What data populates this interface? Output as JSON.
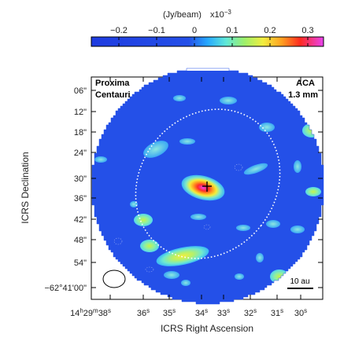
{
  "colorbar": {
    "unit_label": "(Jy/beam)",
    "exponent_label": "x10",
    "exponent_power": "−3",
    "ticks": [
      "−0.2",
      "−0.1",
      "0",
      "0.1",
      "0.2",
      "0.3"
    ]
  },
  "map": {
    "source_line1": "Proxima",
    "source_line2": "Centauri",
    "instrument_line1": "ACA",
    "instrument_line2": "1.3 mm",
    "scalebar_label": "10 au",
    "xlabel": "ICRS Right Ascension",
    "ylabel": "ICRS Declination",
    "y_ticks": [
      "06\"",
      "12\"",
      "18\"",
      "24\"",
      "30\"",
      "36\"",
      "42\"",
      "48\"",
      "54\"",
      "−62°41'00\""
    ],
    "x_ticks": [
      {
        "main": "14",
        "sup1": "h",
        "mid": "29",
        "sup2": "m",
        "end": "38",
        "sup3": "s"
      },
      {
        "main": "36",
        "sup1": "s"
      },
      {
        "main": "35",
        "sup1": "s"
      },
      {
        "main": "34",
        "sup1": "s"
      },
      {
        "main": "33",
        "sup1": "s"
      },
      {
        "main": "32",
        "sup1": "s"
      },
      {
        "main": "31",
        "sup1": "s"
      },
      {
        "main": "30",
        "sup1": "s"
      }
    ]
  },
  "colors": {
    "background_blue": "#2450e8",
    "frame": "#000000",
    "ellipse": "#ffffff"
  }
}
